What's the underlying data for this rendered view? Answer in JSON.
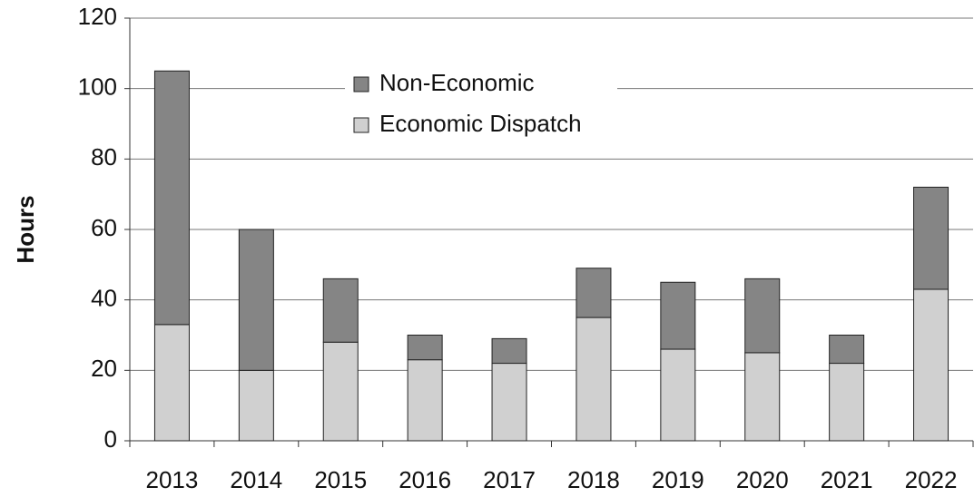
{
  "chart_data": {
    "type": "stacked_bar",
    "y_label": "Hours",
    "categories": [
      "2013",
      "2014",
      "2015",
      "2016",
      "2017",
      "2018",
      "2019",
      "2020",
      "2021",
      "2022"
    ],
    "series": [
      {
        "name": "Economic Dispatch",
        "color": "#d0d0d0",
        "values": [
          33,
          20,
          28,
          23,
          22,
          35,
          26,
          25,
          22,
          43
        ]
      },
      {
        "name": "Non-Economic",
        "color": "#858585",
        "values": [
          72,
          40,
          18,
          7,
          7,
          14,
          19,
          21,
          8,
          29
        ]
      }
    ],
    "ylim": [
      0,
      120
    ],
    "yticks": [
      0,
      20,
      40,
      60,
      80,
      100,
      120
    ],
    "grid": true
  }
}
